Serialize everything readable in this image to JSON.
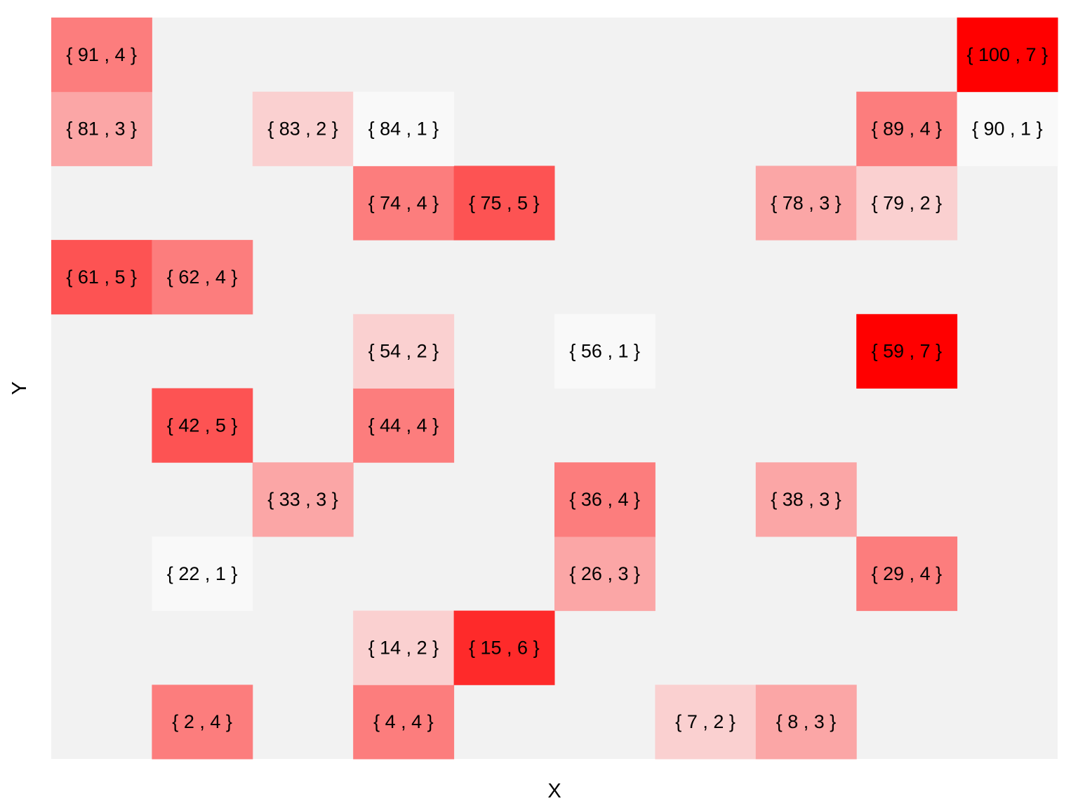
{
  "chart_data": {
    "type": "heatmap",
    "xlabel": "X",
    "ylabel": "Y",
    "grid": false,
    "legend": "none",
    "grid_size": [
      10,
      10
    ],
    "value_range": [
      1,
      7
    ],
    "colors": {
      "background": "#f2f2f2",
      "low": "#f9f9f9",
      "high": "#ff0000"
    },
    "label_format": "{ id , value }",
    "cells": [
      {
        "id": 2,
        "value": 4,
        "label": "{ 2 , 4 }"
      },
      {
        "id": 4,
        "value": 4,
        "label": "{ 4 , 4 }"
      },
      {
        "id": 7,
        "value": 2,
        "label": "{ 7 , 2 }"
      },
      {
        "id": 8,
        "value": 3,
        "label": "{ 8 , 3 }"
      },
      {
        "id": 14,
        "value": 2,
        "label": "{ 14 , 2 }"
      },
      {
        "id": 15,
        "value": 6,
        "label": "{ 15 , 6 }"
      },
      {
        "id": 22,
        "value": 1,
        "label": "{ 22 , 1 }"
      },
      {
        "id": 26,
        "value": 3,
        "label": "{ 26 , 3 }"
      },
      {
        "id": 29,
        "value": 4,
        "label": "{ 29 , 4 }"
      },
      {
        "id": 33,
        "value": 3,
        "label": "{ 33 , 3 }"
      },
      {
        "id": 36,
        "value": 4,
        "label": "{ 36 , 4 }"
      },
      {
        "id": 38,
        "value": 3,
        "label": "{ 38 , 3 }"
      },
      {
        "id": 42,
        "value": 5,
        "label": "{ 42 , 5 }"
      },
      {
        "id": 44,
        "value": 4,
        "label": "{ 44 , 4 }"
      },
      {
        "id": 54,
        "value": 2,
        "label": "{ 54 , 2 }"
      },
      {
        "id": 56,
        "value": 1,
        "label": "{ 56 , 1 }"
      },
      {
        "id": 59,
        "value": 7,
        "label": "{ 59 , 7 }"
      },
      {
        "id": 61,
        "value": 5,
        "label": "{ 61 , 5 }"
      },
      {
        "id": 62,
        "value": 4,
        "label": "{ 62 , 4 }"
      },
      {
        "id": 74,
        "value": 4,
        "label": "{ 74 , 4 }"
      },
      {
        "id": 75,
        "value": 5,
        "label": "{ 75 , 5 }"
      },
      {
        "id": 78,
        "value": 3,
        "label": "{ 78 , 3 }"
      },
      {
        "id": 79,
        "value": 2,
        "label": "{ 79 , 2 }"
      },
      {
        "id": 81,
        "value": 3,
        "label": "{ 81 , 3 }"
      },
      {
        "id": 83,
        "value": 2,
        "label": "{ 83 , 2 }"
      },
      {
        "id": 84,
        "value": 1,
        "label": "{ 84 , 1 }"
      },
      {
        "id": 89,
        "value": 4,
        "label": "{ 89 , 4 }"
      },
      {
        "id": 90,
        "value": 1,
        "label": "{ 90 , 1 }"
      },
      {
        "id": 91,
        "value": 4,
        "label": "{ 91 , 4 }"
      },
      {
        "id": 100,
        "value": 7,
        "label": "{ 100 , 7 }"
      }
    ]
  }
}
